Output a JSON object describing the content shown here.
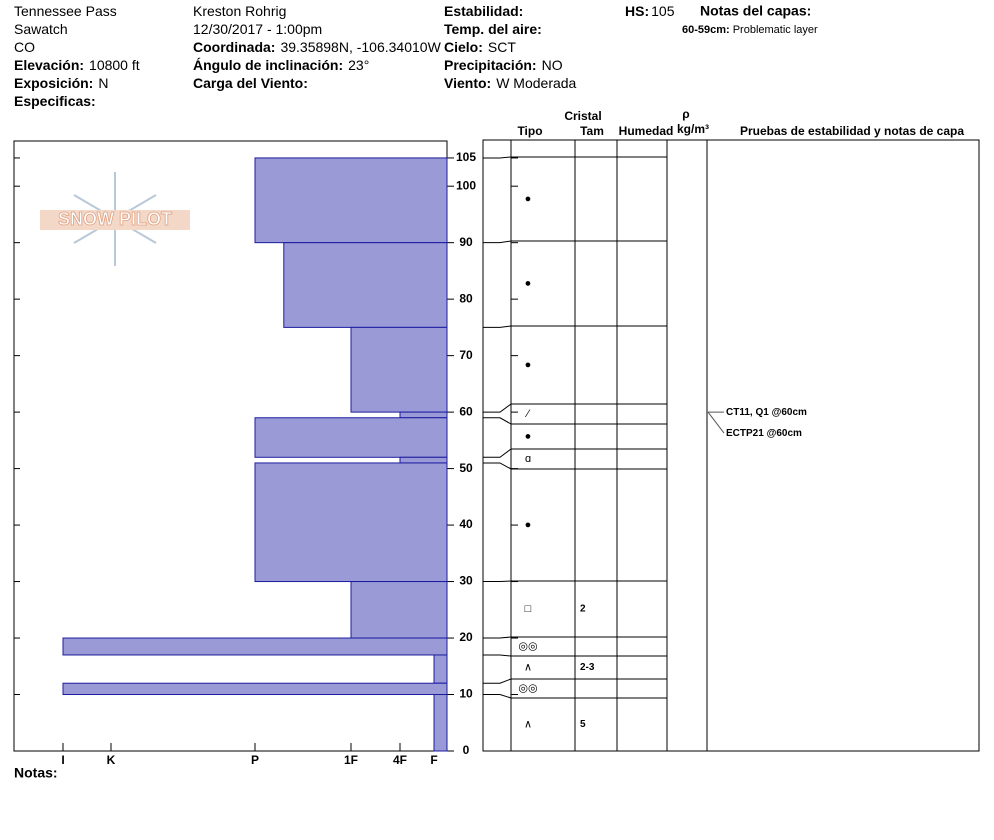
{
  "header": {
    "col1": [
      {
        "value": "Tennessee Pass"
      },
      {
        "value": "Sawatch"
      },
      {
        "value": "CO"
      },
      {
        "label": "Elevación:",
        "value": "10800 ft"
      },
      {
        "label": "Exposición:",
        "value": "N"
      },
      {
        "label": "Especificas:"
      }
    ],
    "col2": [
      {
        "value": "Kreston Rohrig"
      },
      {
        "value": "12/30/2017 - 1:00pm"
      },
      {
        "label": "Coordinada:",
        "value": "39.35898N, -106.34010W"
      },
      {
        "label": "Ángulo de inclinación:",
        "value": "23°"
      },
      {
        "label": "Carga del Viento:"
      }
    ],
    "col3": [
      {
        "label": "Estabilidad:"
      },
      {
        "label": "Temp. del aire:"
      },
      {
        "label": "Cielo:",
        "value": "SCT"
      },
      {
        "label": "Precipitación:",
        "value": "NO"
      },
      {
        "label": "Viento:",
        "value": "W Moderada"
      }
    ],
    "hs": {
      "label": "HS:",
      "value": "105"
    },
    "layer_notes": {
      "title": "Notas del capas:",
      "items": [
        {
          "label": "60-59cm:",
          "value": "Problematic layer"
        }
      ]
    },
    "notes_label": "Notas:",
    "logo": "SNOW PILOT"
  },
  "chart_data": {
    "type": "hardness-profile",
    "ylim": [
      0,
      108
    ],
    "yticks": [
      0,
      10,
      20,
      30,
      40,
      50,
      60,
      70,
      80,
      90,
      100,
      105
    ],
    "xlim": [
      0,
      7
    ],
    "xticks": [
      {
        "value": 6,
        "label": "I"
      },
      {
        "value": 5,
        "label": "K"
      },
      {
        "value": 4,
        "label": "P"
      },
      {
        "value": 3,
        "label": "1F"
      },
      {
        "value": 2,
        "label": "4F"
      },
      {
        "value": 1,
        "label": "F"
      }
    ],
    "color": "#9a9ad6",
    "edge_color": "#1c1ca0",
    "table_headers": [
      "Cristal",
      "Tipo",
      "Tam",
      "Humedad",
      "ρ",
      "kg/m³",
      "Pruebas de estabilidad y notas de capa"
    ],
    "layers": {
      "top": [
        105,
        90,
        75,
        60,
        59,
        52,
        51,
        30,
        20,
        17,
        12,
        10
      ],
      "bottom": [
        90,
        75,
        60,
        59,
        52,
        51,
        30,
        20,
        17,
        12,
        10,
        0
      ],
      "hardness": [
        4,
        3.7,
        3,
        2,
        4,
        2,
        4,
        3,
        6,
        1,
        6,
        1
      ],
      "grain": [
        "●",
        "●",
        "●",
        "⁄",
        "●",
        "ɑ",
        "●",
        "□",
        "◎◎",
        "∧",
        "◎◎",
        "∧"
      ],
      "size": [
        null,
        null,
        null,
        null,
        null,
        null,
        null,
        "2",
        null,
        "2-3",
        null,
        "5"
      ]
    },
    "tests": [
      {
        "text": "CT11, Q1 @60cm",
        "depth": 60
      },
      {
        "text": "ECTP21 @60cm",
        "depth": 60
      }
    ]
  }
}
